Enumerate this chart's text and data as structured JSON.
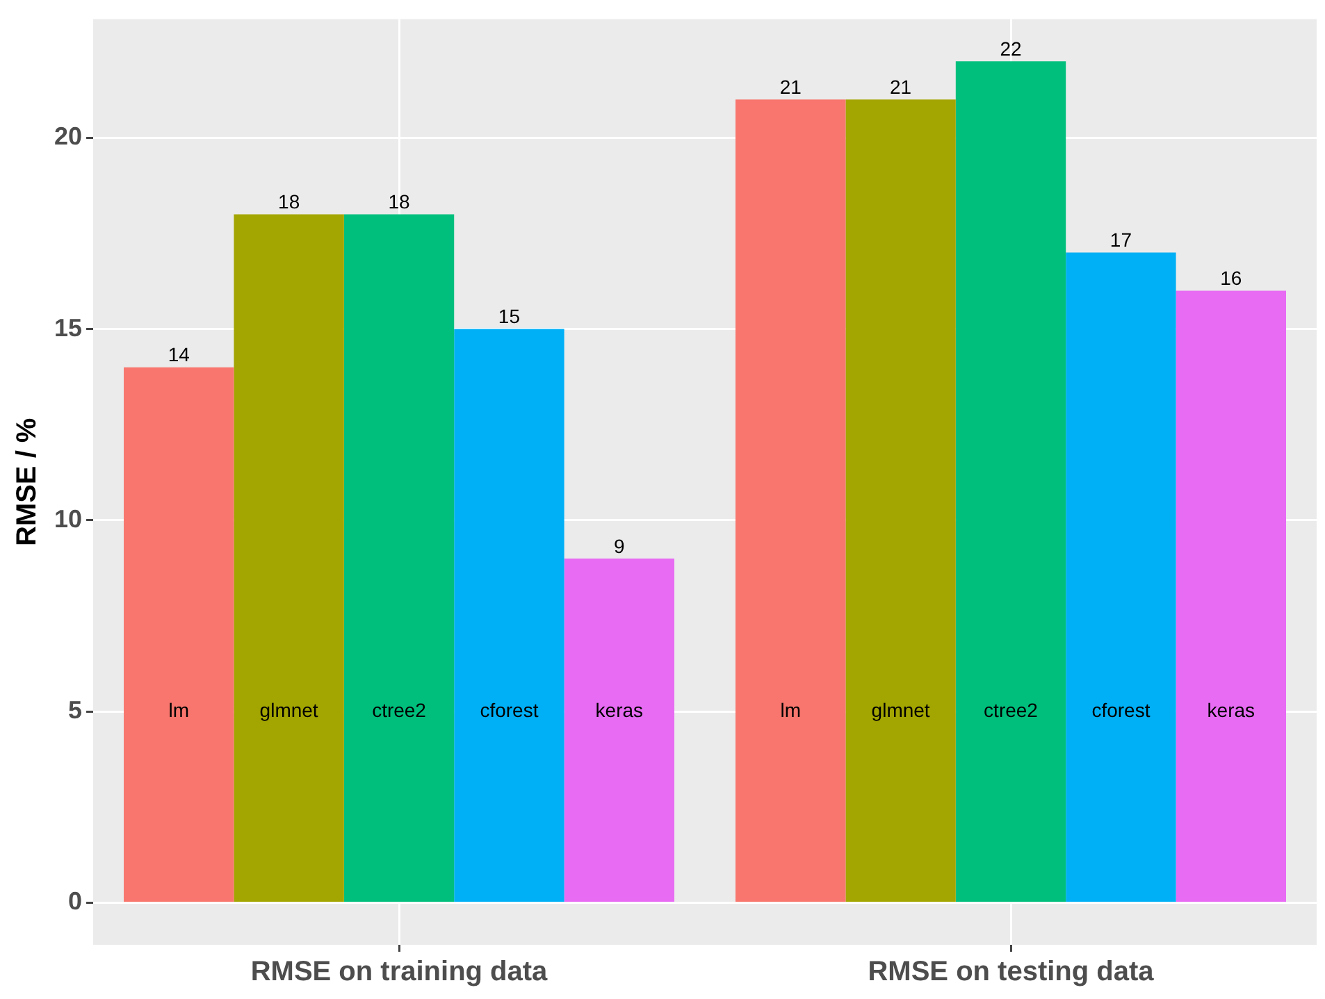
{
  "chart_data": {
    "type": "bar",
    "ylabel": "RMSE / %",
    "categories": [
      "RMSE on training data",
      "RMSE on testing data"
    ],
    "series": [
      {
        "name": "lm",
        "color": "#f8766d",
        "values": [
          14,
          21
        ]
      },
      {
        "name": "glmnet",
        "color": "#a3a500",
        "values": [
          18,
          21
        ]
      },
      {
        "name": "ctree2",
        "color": "#00bf7d",
        "values": [
          18,
          22
        ]
      },
      {
        "name": "cforest",
        "color": "#00b0f6",
        "values": [
          15,
          17
        ]
      },
      {
        "name": "keras",
        "color": "#e76bf3",
        "values": [
          9,
          16
        ]
      }
    ],
    "ylim": [
      -1.1,
      23.1
    ],
    "yticks": [
      0,
      5,
      10,
      15,
      20
    ],
    "grid": true,
    "legend": false,
    "data_labels": true
  }
}
